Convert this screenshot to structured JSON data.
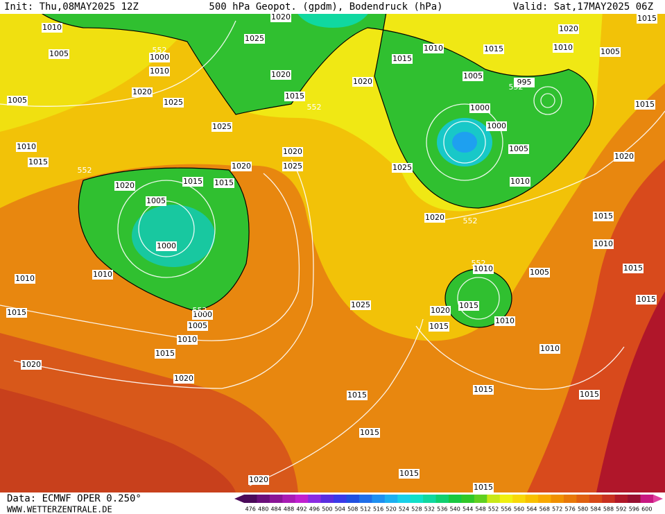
{
  "header": {
    "init": "Init: Thu,08MAY2025 12Z",
    "title": "500 hPa Geopot. (gpdm), Bodendruck (hPa)",
    "valid": "Valid: Sat,17MAY2025 06Z"
  },
  "footer": {
    "source": "Data: ECMWF OPER 0.250°",
    "site": "WWW.WETTERZENTRALE.DE"
  },
  "colorbar": {
    "labels": [
      476,
      480,
      484,
      488,
      492,
      496,
      500,
      504,
      508,
      512,
      516,
      520,
      524,
      528,
      532,
      536,
      540,
      544,
      548,
      552,
      556,
      560,
      564,
      568,
      572,
      576,
      580,
      584,
      588,
      592,
      596,
      600
    ],
    "colors": [
      "#4b0a5a",
      "#6a0f7a",
      "#8a1596",
      "#a81bb4",
      "#c020d0",
      "#8a2be2",
      "#5a2ee0",
      "#3a3ae8",
      "#2050e0",
      "#1f6ee8",
      "#1e90f0",
      "#1cb0f0",
      "#18d0e8",
      "#10e0c8",
      "#10d8a0",
      "#10d070",
      "#18c840",
      "#30c828",
      "#60d020",
      "#c8e818",
      "#f0f010",
      "#f8d808",
      "#f8c000",
      "#f8a800",
      "#f09000",
      "#e87808",
      "#e06010",
      "#d84818",
      "#c83020",
      "#b01828",
      "#981030",
      "#c81880"
    ]
  },
  "map": {
    "isobar_labels": [
      1010,
      1005,
      1005,
      1010,
      1015,
      1020,
      1005,
      1000,
      1010,
      1010,
      1015,
      1000,
      1005,
      1010,
      1015,
      1020,
      1020,
      1015,
      1015,
      1020,
      1025,
      1025,
      1020,
      1010,
      1000,
      1020,
      1025,
      1020,
      1015,
      1020,
      1025,
      1020,
      1015,
      1010,
      1015,
      1005,
      1000,
      1000,
      995,
      1005,
      1010,
      1020,
      1015,
      1010,
      1005,
      1015,
      1020,
      1025,
      1020,
      1015,
      1010,
      1005,
      1010,
      1015,
      1015,
      1025,
      1020,
      1015,
      1015,
      1010,
      1010,
      1015,
      1015,
      1015,
      1015,
      1015,
      1020,
      1015
    ],
    "contour_labels": [
      552,
      552,
      552,
      552,
      552,
      552,
      552
    ]
  }
}
